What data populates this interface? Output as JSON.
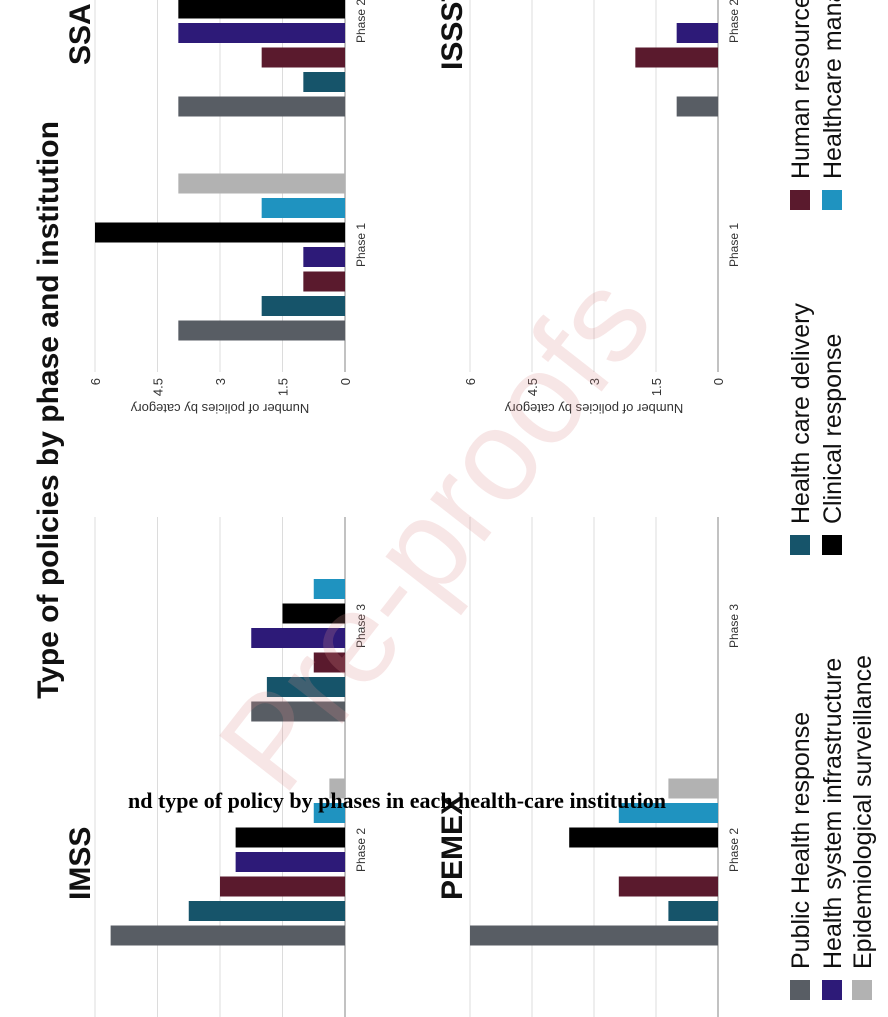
{
  "title": "Type of policies by phase and institution",
  "caption": "nd type of policy by phases in each health-care institution",
  "watermark": "Pre-proofs",
  "legend": [
    {
      "name": "Public Health response",
      "color": "#585d64"
    },
    {
      "name": "Health care delivery",
      "color": "#16546a"
    },
    {
      "name": "Human resources",
      "color": "#5a1a2d"
    },
    {
      "name": "Health system infrastructure",
      "color": "#2d1a78"
    },
    {
      "name": "Clinical response",
      "color": "#000000"
    },
    {
      "name": "Healthcare management",
      "color": "#1f93c0"
    },
    {
      "name": "Epidemiological surveillance",
      "color": "#b2b2b2"
    }
  ],
  "chart_data": [
    {
      "type": "bar",
      "title": "IMSS",
      "categories": [
        "Phase 2",
        "Phase 3"
      ],
      "series": [
        {
          "values": [
            15,
            6
          ]
        },
        {
          "values": [
            10,
            5
          ]
        },
        {
          "values": [
            8,
            2
          ]
        },
        {
          "values": [
            7,
            6
          ]
        },
        {
          "values": [
            7,
            4
          ]
        },
        {
          "values": [
            2,
            2
          ]
        },
        {
          "values": [
            1,
            null
          ]
        }
      ],
      "ylim": [
        0,
        16
      ],
      "yticks": [
        0,
        4,
        8,
        12,
        16
      ],
      "tick_labels": false,
      "grid": true
    },
    {
      "type": "bar",
      "title": "SSA",
      "categories": [
        "Phase 1",
        "Phase 2"
      ],
      "ylabel": "Number of policies by category",
      "series": [
        {
          "values": [
            4,
            4
          ]
        },
        {
          "values": [
            2,
            1
          ]
        },
        {
          "values": [
            1,
            2
          ]
        },
        {
          "values": [
            1,
            4
          ]
        },
        {
          "values": [
            6,
            4
          ]
        },
        {
          "values": [
            2,
            null
          ]
        },
        {
          "values": [
            4,
            null
          ]
        }
      ],
      "ylim": [
        0,
        6
      ],
      "yticks": [
        0,
        1.5,
        3,
        4.5,
        6
      ],
      "tick_labels": true,
      "grid": true
    },
    {
      "type": "bar",
      "title": "PEMEX",
      "categories": [
        "Phase 2",
        "Phase 3"
      ],
      "series": [
        {
          "values": [
            5,
            null
          ]
        },
        {
          "values": [
            1,
            null
          ]
        },
        {
          "values": [
            2,
            null
          ]
        },
        {
          "values": [
            null,
            null
          ]
        },
        {
          "values": [
            3,
            null
          ]
        },
        {
          "values": [
            2,
            null
          ]
        },
        {
          "values": [
            1,
            null
          ]
        }
      ],
      "ylim": [
        0,
        5
      ],
      "yticks": [
        0,
        1.25,
        2.5,
        3.75,
        5
      ],
      "tick_labels": false,
      "grid": true
    },
    {
      "type": "bar",
      "title": "ISSSTE",
      "categories": [
        "Phase 1",
        "Phase 2"
      ],
      "ylabel": "Number of policies by category",
      "series": [
        {
          "values": [
            null,
            1
          ]
        },
        {
          "values": [
            null,
            null
          ]
        },
        {
          "values": [
            null,
            2
          ]
        },
        {
          "values": [
            null,
            1
          ]
        },
        {
          "values": [
            null,
            null
          ]
        },
        {
          "values": [
            null,
            null
          ]
        },
        {
          "values": [
            null,
            null
          ]
        }
      ],
      "ylim": [
        0,
        6
      ],
      "yticks": [
        0,
        1.5,
        3,
        4.5,
        6
      ],
      "tick_labels": true,
      "grid": true
    }
  ]
}
